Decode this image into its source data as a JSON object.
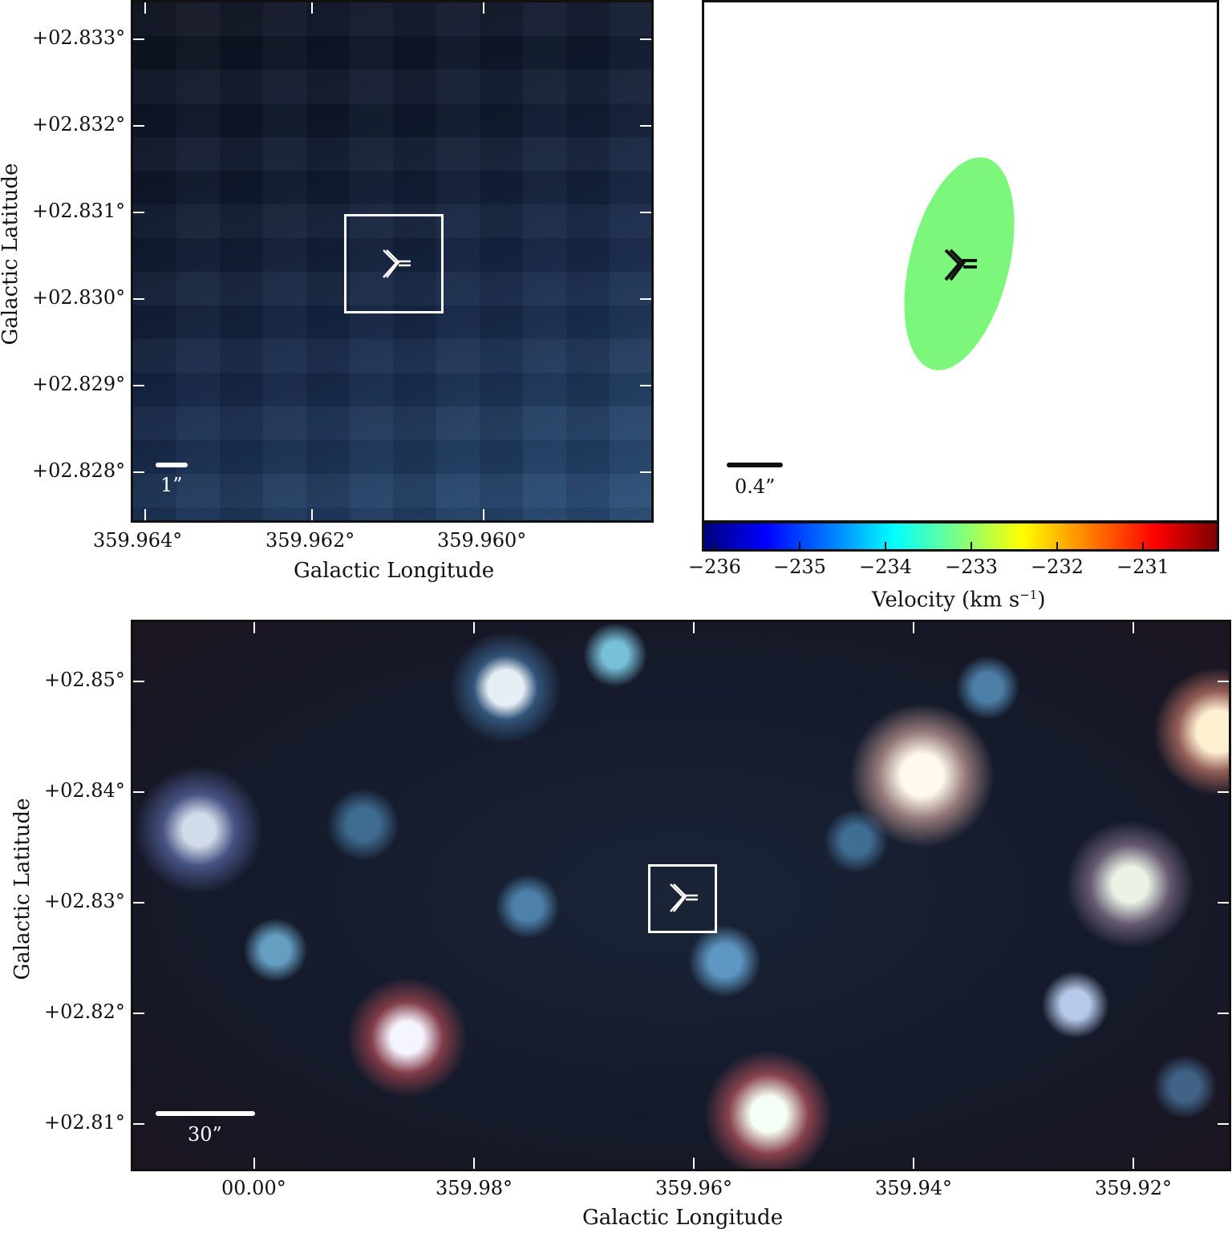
{
  "top_left": {
    "y_ticks": [
      "+02.833°",
      "+02.832°",
      "+02.831°",
      "+02.830°",
      "+02.829°",
      "+02.828°"
    ],
    "x_ticks": [
      "359.964°",
      "359.962°",
      "359.960°"
    ],
    "xlabel": "Galactic Longitude",
    "ylabel": "Galactic Latitude",
    "scale_label": "1”",
    "colors": {
      "marker": "#ffffff",
      "scalebar": "#ffffff"
    }
  },
  "top_right": {
    "scale_label": "0.4”",
    "ellipse_color": "#7cf77c",
    "colorbar": {
      "ticks": [
        "−236",
        "−235",
        "−234",
        "−233",
        "−232",
        "−231"
      ],
      "label": "Velocity (km s",
      "label_exp": "−1",
      "label_end": ")",
      "colormap": "jet"
    }
  },
  "bottom": {
    "y_ticks": [
      "+02.85°",
      "+02.84°",
      "+02.83°",
      "+02.82°",
      "+02.81°"
    ],
    "x_ticks": [
      "00.00°",
      "359.98°",
      "359.96°",
      "359.94°",
      "359.92°"
    ],
    "xlabel": "Galactic Longitude",
    "ylabel": "Galactic Latitude",
    "scale_label": "30”"
  }
}
